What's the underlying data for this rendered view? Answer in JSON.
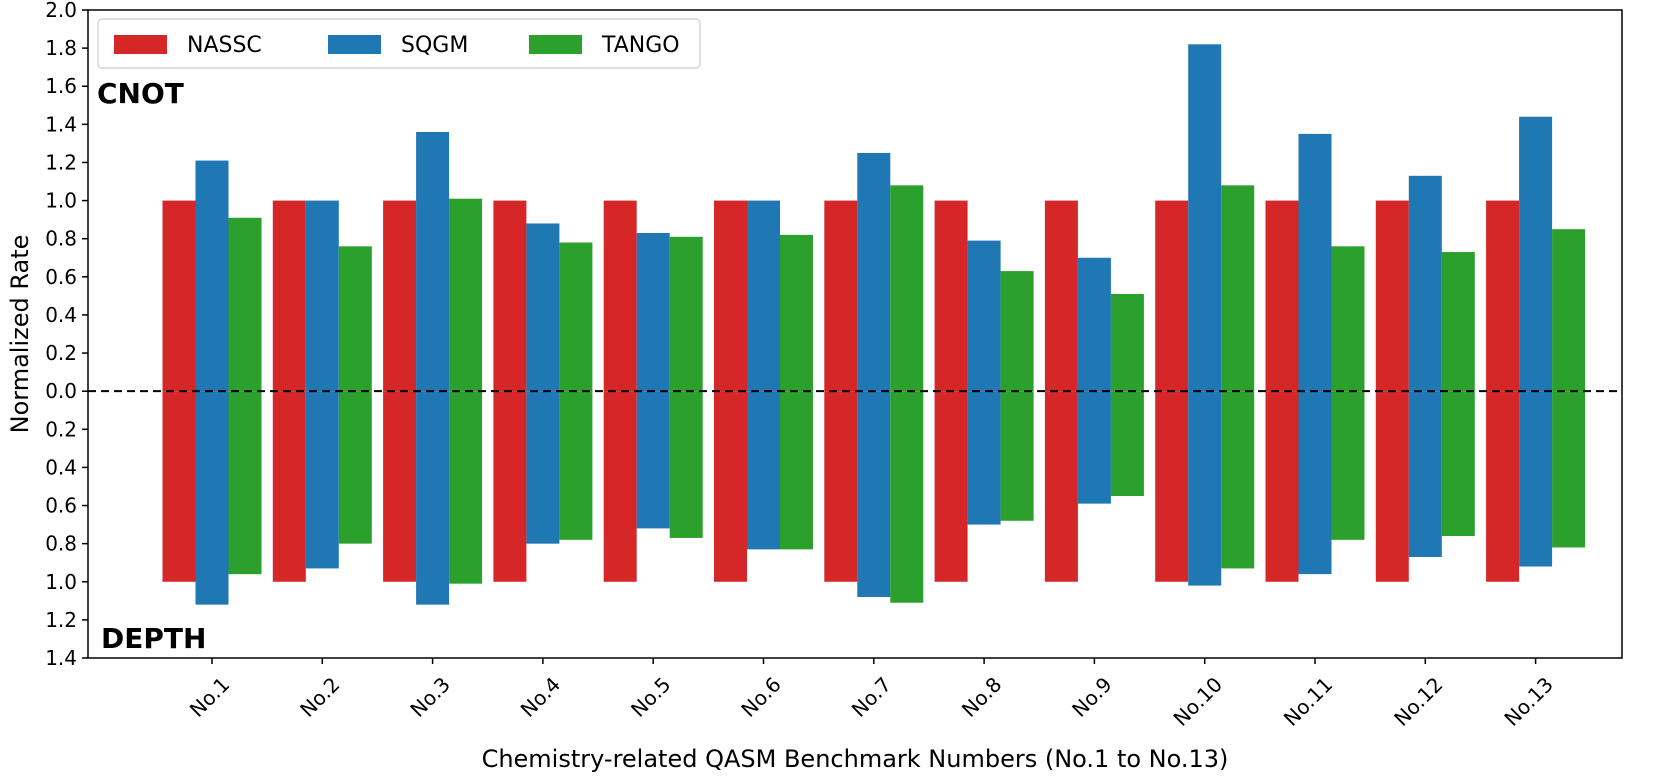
{
  "chart_data": {
    "type": "bar",
    "xlabel": "Chemistry-related QASM Benchmark Numbers (No.1 to No.13)",
    "ylabel": "Normalized Rate",
    "categories": [
      "No.1",
      "No.2",
      "No.3",
      "No.4",
      "No.5",
      "No.6",
      "No.7",
      "No.8",
      "No.9",
      "No.10",
      "No.11",
      "No.12",
      "No.13"
    ],
    "upper_label": "CNOT",
    "lower_label": "DEPTH",
    "ylim": [
      -1.4,
      2.0
    ],
    "y_ticks": [
      2.0,
      1.8,
      1.6,
      1.4,
      1.2,
      1.0,
      0.8,
      0.6,
      0.4,
      0.2,
      0.0,
      -0.2,
      -0.4,
      -0.6,
      -0.8,
      -1.0,
      -1.2,
      -1.4
    ],
    "y_tick_labels": [
      "2.0",
      "1.8",
      "1.6",
      "1.4",
      "1.2",
      "1.0",
      "0.8",
      "0.6",
      "0.4",
      "0.2",
      "0.0",
      "0.2",
      "0.4",
      "0.6",
      "0.8",
      "1.0",
      "1.2",
      "1.4"
    ],
    "legend_position": "top-left",
    "series": [
      {
        "name": "NASSC",
        "color": "#d62728",
        "cnot": [
          1.0,
          1.0,
          1.0,
          1.0,
          1.0,
          1.0,
          1.0,
          1.0,
          1.0,
          1.0,
          1.0,
          1.0,
          1.0
        ],
        "depth": [
          1.0,
          1.0,
          1.0,
          1.0,
          1.0,
          1.0,
          1.0,
          1.0,
          1.0,
          1.0,
          1.0,
          1.0,
          1.0
        ]
      },
      {
        "name": "SQGM",
        "color": "#1f77b4",
        "cnot": [
          1.21,
          1.0,
          1.36,
          0.88,
          0.83,
          1.0,
          1.25,
          0.79,
          0.7,
          1.82,
          1.35,
          1.13,
          1.44
        ],
        "depth": [
          1.12,
          0.93,
          1.12,
          0.8,
          0.72,
          0.83,
          1.08,
          0.7,
          0.59,
          1.02,
          0.96,
          0.87,
          0.92
        ]
      },
      {
        "name": "TANGO",
        "color": "#2ca02c",
        "cnot": [
          0.91,
          0.76,
          1.01,
          0.78,
          0.81,
          0.82,
          1.08,
          0.63,
          0.51,
          1.08,
          0.76,
          0.73,
          0.85
        ],
        "depth": [
          0.96,
          0.8,
          1.01,
          0.78,
          0.77,
          0.83,
          1.11,
          0.68,
          0.55,
          0.93,
          0.78,
          0.76,
          0.82
        ]
      }
    ]
  }
}
